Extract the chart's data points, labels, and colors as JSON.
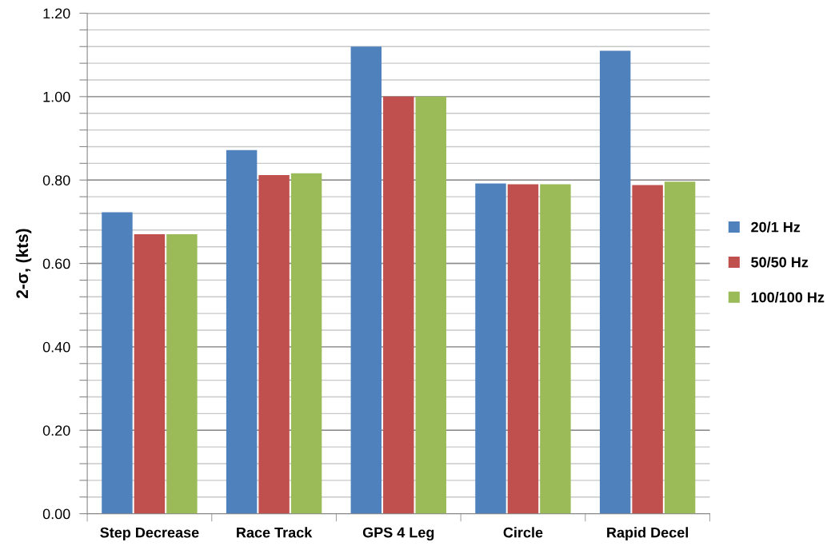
{
  "chart_data": {
    "type": "bar",
    "ylabel": "2-σ, (kts)",
    "categories": [
      "Step Decrease",
      "Race Track",
      "GPS 4 Leg",
      "Circle",
      "Rapid Decel"
    ],
    "series": [
      {
        "name": "20/1 Hz",
        "color": "#4f81bd",
        "values": [
          0.723,
          0.872,
          1.12,
          0.792,
          1.11
        ]
      },
      {
        "name": "50/50 Hz",
        "color": "#c0504d",
        "values": [
          0.67,
          0.812,
          1.0,
          0.79,
          0.788
        ]
      },
      {
        "name": "100/100 Hz",
        "color": "#9bbb59",
        "values": [
          0.67,
          0.816,
          1.0,
          0.79,
          0.796
        ]
      }
    ],
    "ylim": [
      0,
      1.2
    ],
    "yticks": [
      {
        "value": 0,
        "label": "0.00"
      },
      {
        "value": 0.04,
        "label": null
      },
      {
        "value": 0.08,
        "label": null
      },
      {
        "value": 0.12,
        "label": null
      },
      {
        "value": 0.16,
        "label": null
      },
      {
        "value": 0.2,
        "label": "0.20"
      },
      {
        "value": 0.24,
        "label": null
      },
      {
        "value": 0.28,
        "label": null
      },
      {
        "value": 0.32,
        "label": null
      },
      {
        "value": 0.36,
        "label": null
      },
      {
        "value": 0.4,
        "label": "0.40"
      },
      {
        "value": 0.44,
        "label": null
      },
      {
        "value": 0.48,
        "label": null
      },
      {
        "value": 0.52,
        "label": null
      },
      {
        "value": 0.56,
        "label": null
      },
      {
        "value": 0.6,
        "label": "0.60"
      },
      {
        "value": 0.64,
        "label": null
      },
      {
        "value": 0.68,
        "label": null
      },
      {
        "value": 0.72,
        "label": null
      },
      {
        "value": 0.76,
        "label": null
      },
      {
        "value": 0.8,
        "label": "0.80"
      },
      {
        "value": 0.84,
        "label": null
      },
      {
        "value": 0.88,
        "label": null
      },
      {
        "value": 0.92,
        "label": null
      },
      {
        "value": 0.96,
        "label": null
      },
      {
        "value": 1.0,
        "label": "1.00"
      },
      {
        "value": 1.04,
        "label": null
      },
      {
        "value": 1.08,
        "label": null
      },
      {
        "value": 1.12,
        "label": null
      },
      {
        "value": 1.16,
        "label": null
      },
      {
        "value": 1.2,
        "label": "1.20"
      }
    ],
    "grid": "y",
    "legend": "right"
  }
}
